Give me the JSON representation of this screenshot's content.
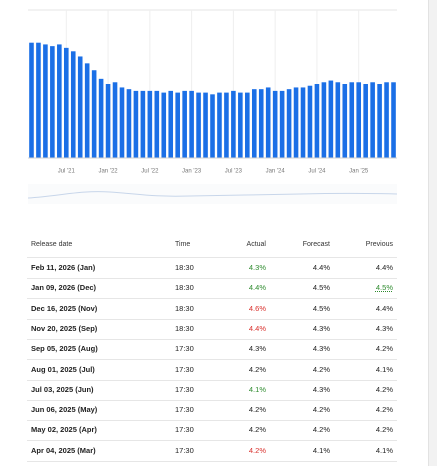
{
  "chart_data": {
    "type": "bar",
    "color": "#1b6fe6",
    "grid": true,
    "ylim": [
      0,
      8.6
    ],
    "categories": [
      null,
      null,
      null,
      null,
      null,
      "Jul '21",
      null,
      null,
      null,
      null,
      null,
      "Jan '22",
      null,
      null,
      null,
      null,
      null,
      "Jul '22",
      null,
      null,
      null,
      null,
      null,
      "Jan '23",
      null,
      null,
      null,
      null,
      null,
      "Jul '23",
      null,
      null,
      null,
      null,
      null,
      "Jan '24",
      null,
      null,
      null,
      null,
      null,
      "Jul '24",
      null,
      null,
      null,
      null,
      null,
      "Jan '25",
      null,
      null,
      null,
      null,
      null
    ],
    "values": [
      6.7,
      6.7,
      6.6,
      6.5,
      6.6,
      6.4,
      6.2,
      5.9,
      5.5,
      5.1,
      4.6,
      4.3,
      4.4,
      4.1,
      4.0,
      3.9,
      3.9,
      3.9,
      3.9,
      3.8,
      3.9,
      3.8,
      3.9,
      3.9,
      3.8,
      3.8,
      3.7,
      3.8,
      3.8,
      3.9,
      3.8,
      3.8,
      4.0,
      4.0,
      4.1,
      3.9,
      3.9,
      4.0,
      4.1,
      4.1,
      4.2,
      4.3,
      4.4,
      4.5,
      4.4,
      4.3,
      4.4,
      4.4,
      4.3,
      4.4,
      4.3,
      4.4,
      4.4
    ]
  },
  "table": {
    "headers": [
      "Release date",
      "Time",
      "Actual",
      "Forecast",
      "Previous"
    ],
    "rows": [
      [
        "Feb 11, 2026 (Jan)",
        "18:30",
        "4.3%",
        "4.4%",
        "4.4%"
      ],
      [
        "Jan 09, 2026 (Dec)",
        "18:30",
        "4.4%",
        "4.5%",
        "4.5%"
      ],
      [
        "Dec 16, 2025 (Nov)",
        "18:30",
        "4.6%",
        "4.5%",
        "4.4%"
      ],
      [
        "Nov 20, 2025 (Sep)",
        "18:30",
        "4.4%",
        "4.3%",
        "4.3%"
      ],
      [
        "Sep 05, 2025 (Aug)",
        "17:30",
        "4.3%",
        "4.3%",
        "4.2%"
      ],
      [
        "Aug 01, 2025 (Jul)",
        "17:30",
        "4.2%",
        "4.2%",
        "4.1%"
      ],
      [
        "Jul 03, 2025 (Jun)",
        "17:30",
        "4.1%",
        "4.3%",
        "4.2%"
      ],
      [
        "Jun 06, 2025 (May)",
        "17:30",
        "4.2%",
        "4.2%",
        "4.2%"
      ],
      [
        "May 02, 2025 (Apr)",
        "17:30",
        "4.2%",
        "4.2%",
        "4.2%"
      ],
      [
        "Apr 04, 2025 (Mar)",
        "17:30",
        "4.2%",
        "4.1%",
        "4.1%"
      ]
    ],
    "actual_colors": [
      "#2e8b2e",
      "#2e8b2e",
      "#d9302c",
      "#d9302c",
      "#222",
      "#222",
      "#2e8b2e",
      "#222",
      "#222",
      "#d9302c"
    ],
    "previous_colors": [
      "#222",
      "#2e8b2e",
      "#222",
      "#222",
      "#222",
      "#222",
      "#222",
      "#222",
      "#222",
      "#222"
    ]
  }
}
